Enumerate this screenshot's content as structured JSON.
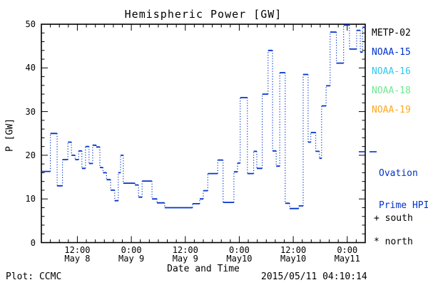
{
  "title": "Hemispheric Power [GW]",
  "axes": {
    "ylabel": "P [GW]",
    "xlabel": "Date and Time",
    "y_major_ticks": [
      0,
      10,
      20,
      30,
      40,
      50
    ],
    "y_minor_step": 2,
    "x_minor_step_hours": 2
  },
  "legend": {
    "satellites": [
      {
        "label": "METP-02",
        "color": "#000000"
      },
      {
        "label": "NOAA-15",
        "color": "#0033cc"
      },
      {
        "label": "NOAA-16",
        "color": "#2fc8f0"
      },
      {
        "label": "NOAA-18",
        "color": "#70e890"
      },
      {
        "label": "NOAA-19",
        "color": "#ffa81e"
      }
    ],
    "ovation": {
      "label_line1": "Ovation",
      "label_line2": "Prime HPI",
      "color": "#0033cc",
      "sample_style": "dashed"
    },
    "markers": {
      "south": "+ south",
      "north": "* north"
    }
  },
  "footer": {
    "left": "Plot: CCMC",
    "right": "2015/05/11 04:10:14"
  },
  "chart_data": {
    "type": "line",
    "subtype": "step-post; horizontal segments solid, vertical connectors dotted",
    "title": "Hemispheric Power [GW]",
    "xlabel": "Date and Time",
    "ylabel": "P [GW]",
    "ylim": [
      0,
      50
    ],
    "x_unit": "hours since 2015-05-08 00:00",
    "xlim": [
      4,
      76
    ],
    "grid": false,
    "legend_position": "right-outside",
    "x_major_ticks": [
      {
        "t": 12,
        "time": "12:00",
        "date": "May 8"
      },
      {
        "t": 24,
        "time": "0:00",
        "date": "May 9"
      },
      {
        "t": 36,
        "time": "12:00",
        "date": "May 9"
      },
      {
        "t": 48,
        "time": "0:00",
        "date": "May10"
      },
      {
        "t": 60,
        "time": "12:00",
        "date": "May10"
      },
      {
        "t": 72,
        "time": "0:00",
        "date": "May11"
      }
    ],
    "series": [
      {
        "name": "Ovation Prime HPI (NOAA-15)",
        "color": "#0033cc",
        "steps": [
          [
            4.0,
            16.3
          ],
          [
            6.0,
            25.0
          ],
          [
            7.5,
            13.0
          ],
          [
            8.7,
            19.0
          ],
          [
            9.9,
            23.0
          ],
          [
            10.7,
            20.0
          ],
          [
            11.5,
            19.0
          ],
          [
            12.3,
            21.0
          ],
          [
            13.0,
            17.0
          ],
          [
            13.8,
            22.0
          ],
          [
            14.6,
            18.1
          ],
          [
            15.4,
            22.3
          ],
          [
            16.2,
            21.9
          ],
          [
            17.0,
            17.2
          ],
          [
            17.7,
            16.0
          ],
          [
            18.5,
            14.4
          ],
          [
            19.4,
            12.0
          ],
          [
            20.3,
            9.6
          ],
          [
            21.1,
            16.0
          ],
          [
            21.6,
            20.0
          ],
          [
            22.2,
            13.6
          ],
          [
            24.8,
            13.2
          ],
          [
            25.6,
            10.4
          ],
          [
            26.4,
            14.1
          ],
          [
            28.6,
            10.0
          ],
          [
            29.7,
            9.1
          ],
          [
            31.4,
            8.0
          ],
          [
            37.6,
            8.9
          ],
          [
            39.2,
            10.0
          ],
          [
            40.0,
            11.9
          ],
          [
            41.0,
            15.8
          ],
          [
            43.2,
            18.9
          ],
          [
            44.4,
            9.2
          ],
          [
            46.8,
            16.2
          ],
          [
            47.6,
            18.2
          ],
          [
            48.2,
            33.2
          ],
          [
            49.8,
            15.8
          ],
          [
            51.2,
            20.9
          ],
          [
            51.9,
            17.0
          ],
          [
            53.1,
            34.0
          ],
          [
            54.4,
            44.0
          ],
          [
            55.4,
            21.0
          ],
          [
            56.2,
            17.5
          ],
          [
            57.0,
            38.9
          ],
          [
            58.2,
            9.0
          ],
          [
            59.2,
            7.8
          ],
          [
            61.2,
            8.4
          ],
          [
            62.2,
            38.5
          ],
          [
            63.3,
            23.0
          ],
          [
            63.9,
            25.2
          ],
          [
            65.0,
            20.9
          ],
          [
            65.8,
            19.3
          ],
          [
            66.3,
            31.3
          ],
          [
            67.3,
            35.9
          ],
          [
            68.2,
            48.2
          ],
          [
            69.6,
            41.1
          ],
          [
            71.2,
            49.8
          ],
          [
            72.5,
            44.3
          ],
          [
            74.1,
            48.6
          ],
          [
            74.9,
            43.6
          ],
          [
            75.4,
            49.3
          ]
        ],
        "end_t": 76
      }
    ]
  }
}
